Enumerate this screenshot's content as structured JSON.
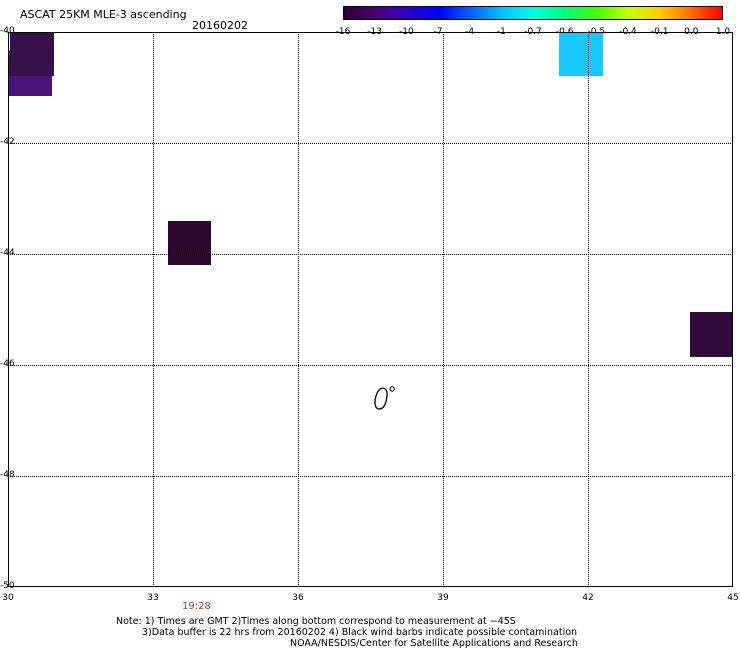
{
  "header": {
    "title": "ASCAT 25KM MLE-3 ascending",
    "date": "20160202"
  },
  "colorbar": {
    "labels": [
      "-16",
      "-13",
      "-10",
      "-7",
      "-4",
      "-1",
      "-0.7",
      "-0.6",
      "-0.5",
      "-0.4",
      "-0.1",
      "0.0",
      "1.0"
    ],
    "colors": [
      "#2a0030",
      "#4b0070",
      "#2d00c8",
      "#0000ff",
      "#0060ff",
      "#00c0ff",
      "#00ffe0",
      "#00ff80",
      "#40ff00",
      "#c0ff00",
      "#ffd000",
      "#ff7000",
      "#ff0000"
    ]
  },
  "map": {
    "lat_labels": [
      "-40",
      "-42",
      "-44",
      "-46",
      "-48",
      "-50"
    ],
    "lon_labels": [
      "30",
      "33",
      "36",
      "39",
      "42",
      "45"
    ],
    "cells": [
      {
        "lon": 30.5,
        "lat": -40.35,
        "color": "#36114a"
      },
      {
        "lon": 30.2,
        "lat": -40.75,
        "color": "#4a137a"
      },
      {
        "lon": 33.75,
        "lat": -43.8,
        "color": "#2b0a2e"
      },
      {
        "lon": 41.85,
        "lat": -40.2,
        "color": "#18c8ff"
      },
      {
        "lon": 44.55,
        "lat": -45.45,
        "color": "#300a3a"
      }
    ],
    "island_outline": "coastline"
  },
  "footer": {
    "time_label": "19:28",
    "note_line1": "Note: 1) Times are GMT 2)Times along bottom correspond to measurement at −45S",
    "note_line2": "3)Data buffer is 22 hrs from 20160202 4) Black wind barbs indicate possible contamination",
    "note_line3": "NOAA/NESDIS/Center for Satellite Applications and Research"
  }
}
